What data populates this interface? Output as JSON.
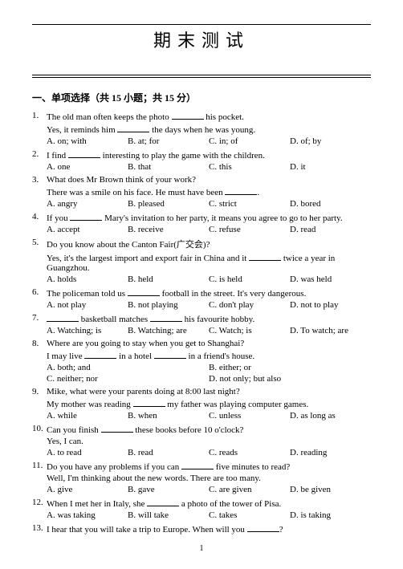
{
  "title": "期末测试",
  "section": "一、单项选择（共 15 小题；共 15 分）",
  "pageNumber": "1",
  "questions": [
    {
      "n": "1.",
      "t": "The old man often keeps the photo ______ his pocket.",
      "sub": "Yes, it reminds him ______ the days when he was young.",
      "opts": [
        "A. on; with",
        "B. at; for",
        "C. in; of",
        "D. of; by"
      ]
    },
    {
      "n": "2.",
      "t": "I find ______ interesting to play the game with the children.",
      "opts": [
        "A. one",
        "B. that",
        "C. this",
        "D. it"
      ]
    },
    {
      "n": "3.",
      "t": "What does Mr Brown think of your work?",
      "sub": "There was a smile on his face. He must have been ______.",
      "opts": [
        "A. angry",
        "B. pleased",
        "C. strict",
        "D. bored"
      ]
    },
    {
      "n": "4.",
      "t": "If you ______ Mary's invitation to her party, it means you agree to go to her party.",
      "opts": [
        "A. accept",
        "B. receive",
        "C. refuse",
        "D. read"
      ]
    },
    {
      "n": "5.",
      "t": "Do you know about the Canton Fair(广交会)?",
      "sub": "Yes, it's the largest import and export fair in China and it ______ twice a year in Guangzhou.",
      "opts": [
        "A. holds",
        "B. held",
        "C. is held",
        "D. was held"
      ]
    },
    {
      "n": "6.",
      "t": "The policeman told us ______ football in the street. It's very dangerous.",
      "opts": [
        "A. not play",
        "B. not playing",
        "C. don't play",
        "D. not to play"
      ]
    },
    {
      "n": "7.",
      "t": "______ basketball matches ______ his favourite hobby.",
      "opts": [
        "A. Watching; is",
        "B. Watching; are",
        "C. Watch; is",
        "D. To watch; are"
      ]
    },
    {
      "n": "8.",
      "t": "Where are you going to stay when you get to Shanghai?",
      "sub": "I may live ______ in a hotel ______ in a friend's house.",
      "opts": [
        "A. both; and",
        "B. either; or"
      ],
      "opts2": [
        "C. neither; nor",
        "D. not only; but also"
      ]
    },
    {
      "n": "9.",
      "t": "Mike, what were your parents doing at 8:00 last night?",
      "sub": "My mother was reading ______ my father was playing computer games.",
      "opts": [
        "A. while",
        "B. when",
        "C. unless",
        "D. as long as"
      ]
    },
    {
      "n": "10.",
      "t": "Can you finish ______ these books before 10 o'clock?",
      "sub": "Yes, I can.",
      "opts": [
        "A. to read",
        "B. read",
        "C. reads",
        "D. reading"
      ]
    },
    {
      "n": "11.",
      "t": "Do you have any problems if you can ______ five minutes to read?",
      "sub": "Well, I'm thinking about the new words. There are too many.",
      "opts": [
        "A. give",
        "B. gave",
        "C. are given",
        "D. be given"
      ]
    },
    {
      "n": "12.",
      "t": "When I met her in Italy, she ______ a photo of the tower of Pisa.",
      "opts": [
        "A. was taking",
        "B. will take",
        "C. takes",
        "D. is taking"
      ]
    },
    {
      "n": "13.",
      "t": "I hear that you will take a trip to Europe. When will you ______?"
    }
  ]
}
